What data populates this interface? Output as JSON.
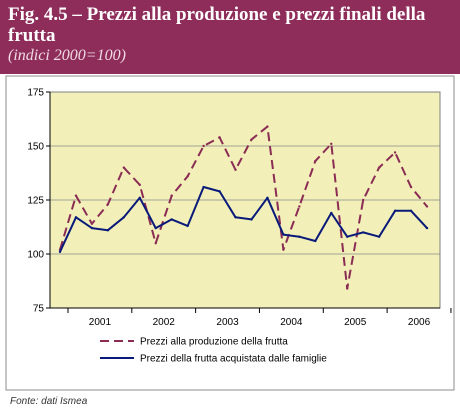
{
  "header": {
    "title": "Fig. 4.5 – Prezzi alla produzione e prezzi finali della frutta",
    "subtitle": "(indici 2000=100)"
  },
  "colors": {
    "header_bg": "#8e2d5a",
    "plot_bg": "#f2f0b8",
    "production_series": "#8b2c55",
    "retail_series": "#0a1a7a"
  },
  "source": "Fonte: dati Ismea",
  "chart_data": {
    "type": "line",
    "title": "",
    "xlabel": "",
    "ylabel": "",
    "ylim": [
      75,
      175
    ],
    "yticks": [
      75,
      100,
      125,
      150,
      175
    ],
    "year_labels": [
      "2001",
      "2002",
      "2003",
      "2004",
      "2005",
      "2006"
    ],
    "grid": "horizontal",
    "legend_position": "bottom",
    "x_axis_note": "quarterly points from Q4 2000 to Q4 2006",
    "series": [
      {
        "name": "Prezzi alla produzione della frutta",
        "style": "dashed",
        "values": [
          102,
          127,
          114,
          123,
          140,
          132,
          105,
          127,
          136,
          150,
          154,
          139,
          153,
          159,
          102,
          122,
          143,
          151,
          84,
          125,
          140,
          147,
          131,
          122
        ]
      },
      {
        "name": "Prezzi della frutta acquistata dalle famiglie",
        "style": "solid",
        "values": [
          101,
          117,
          112,
          111,
          117,
          126,
          112,
          116,
          113,
          131,
          129,
          117,
          116,
          126,
          109,
          108,
          106,
          119,
          108,
          110,
          108,
          120,
          120,
          112
        ]
      }
    ]
  }
}
